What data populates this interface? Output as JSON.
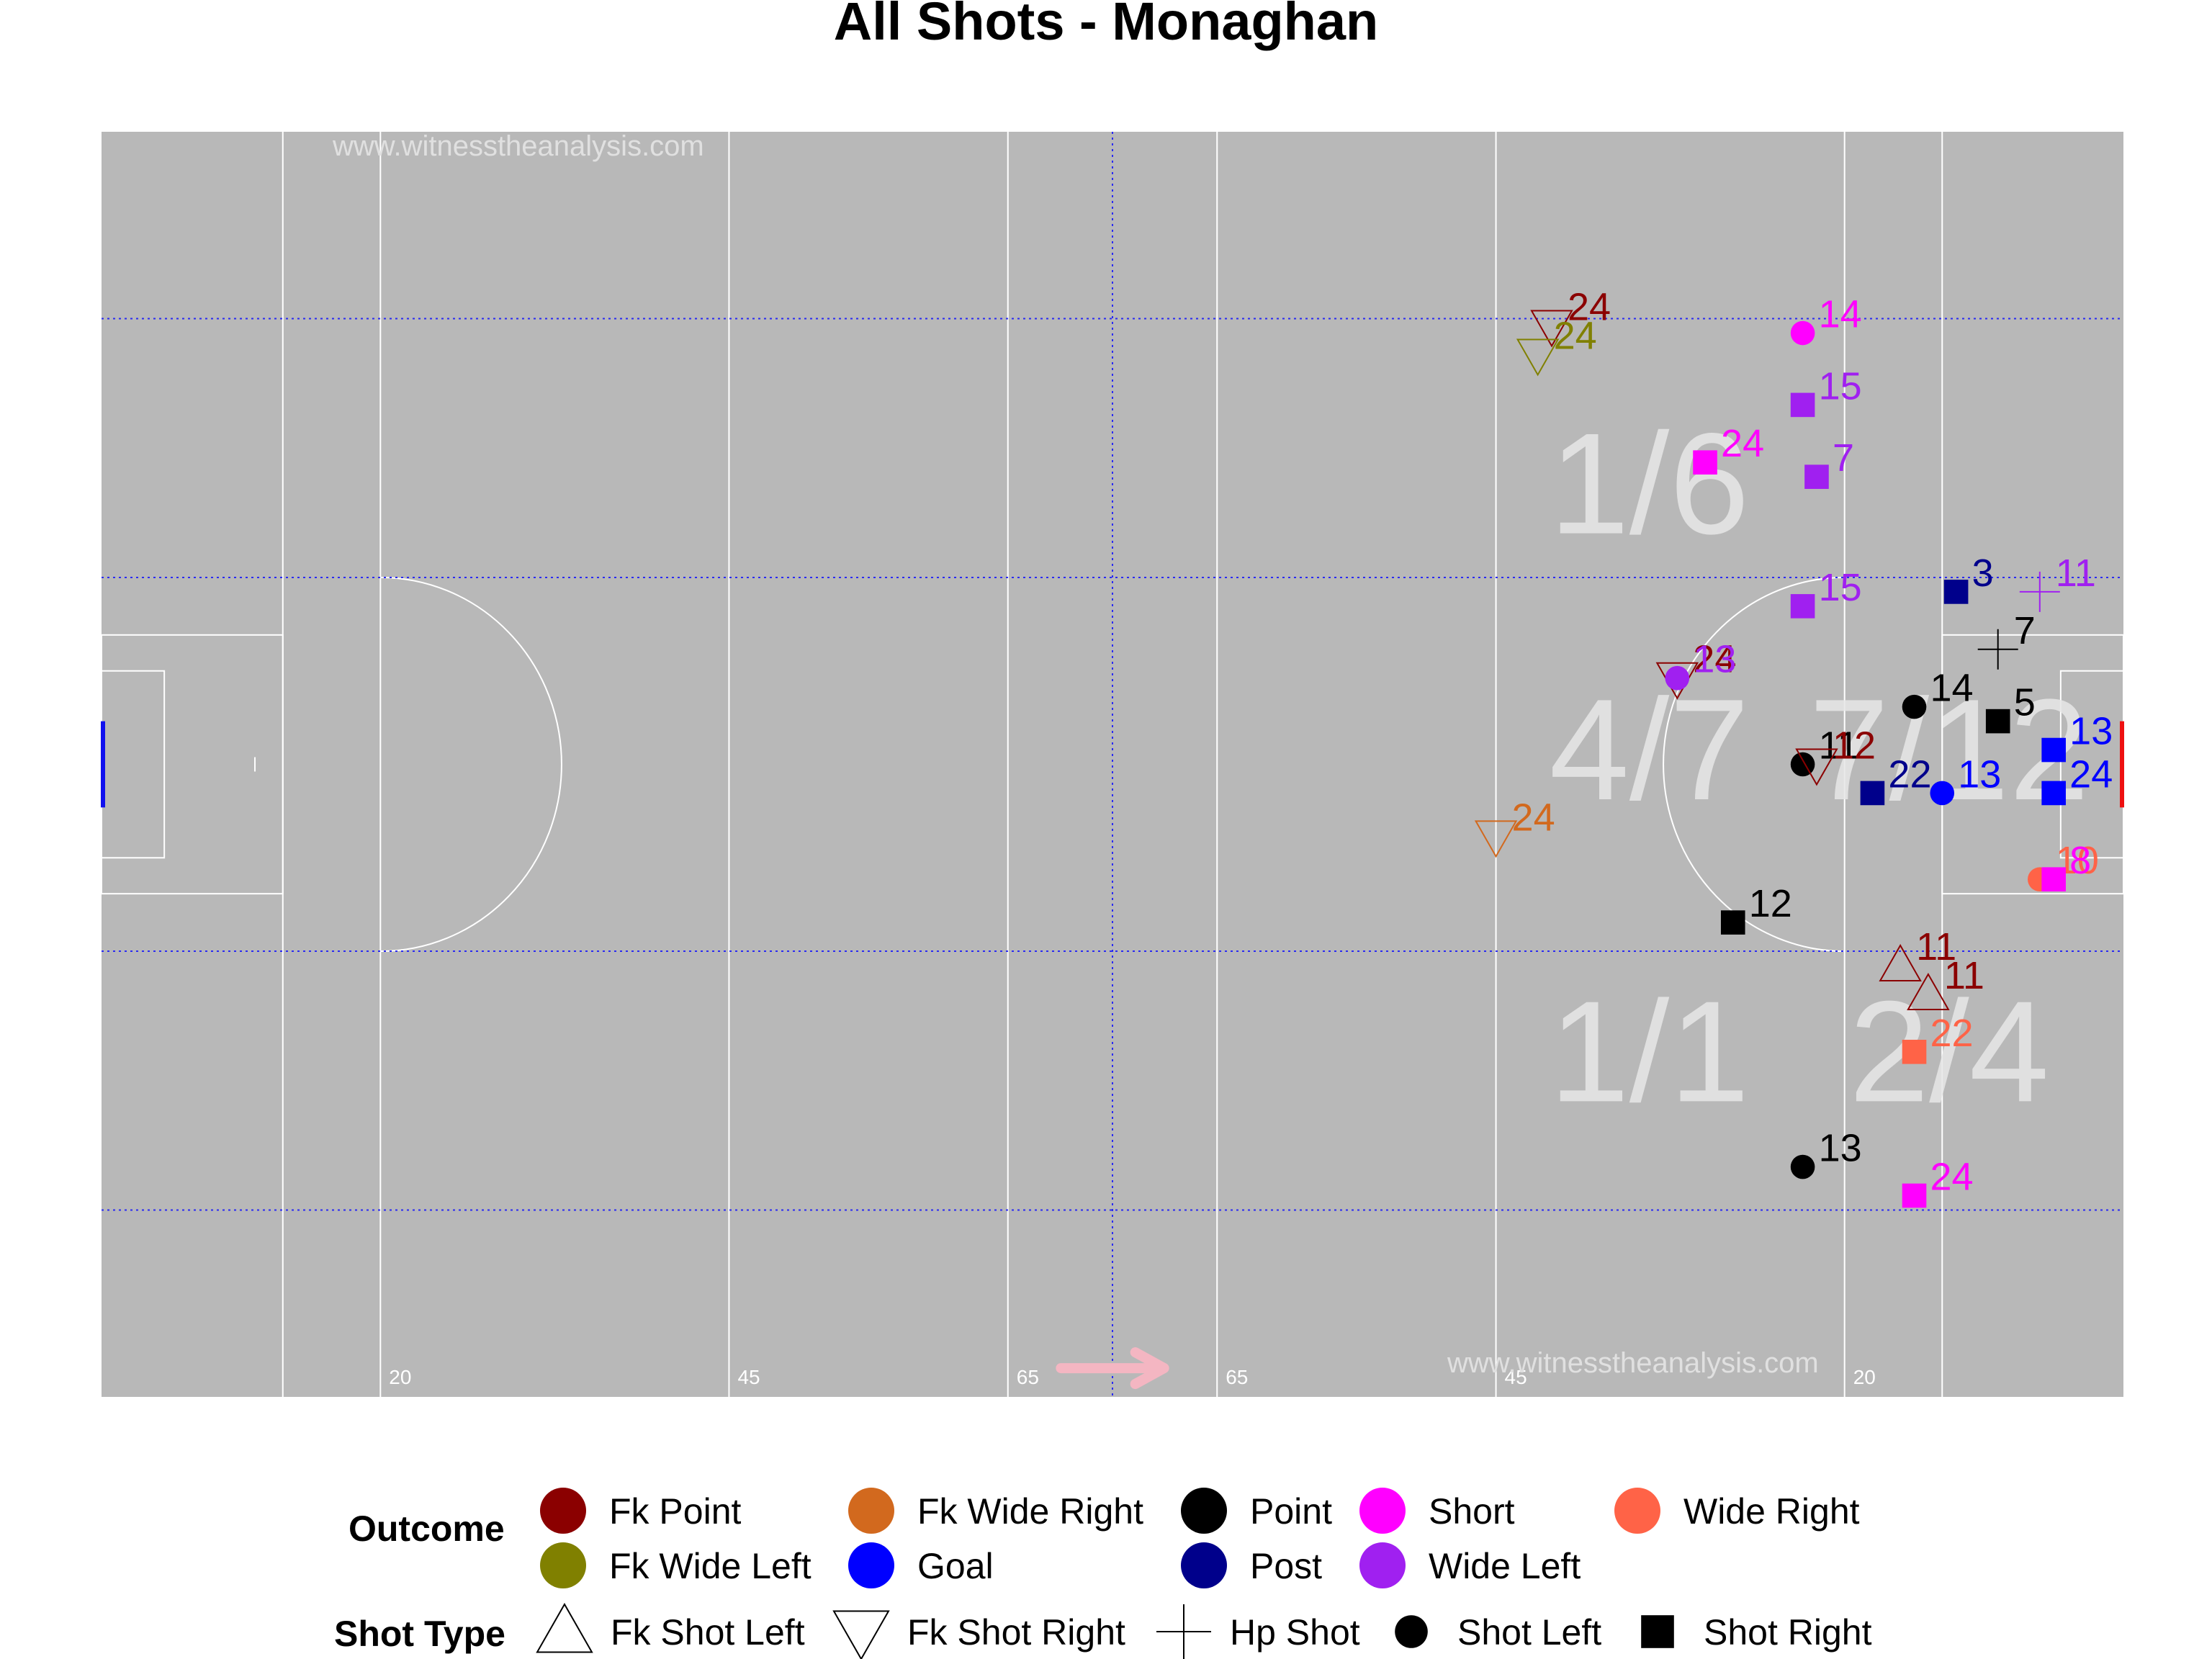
{
  "title": "All Shots - Monaghan",
  "watermark_top": "www.witnesstheanalysis.com",
  "watermark_bottom": "www.witnesstheanalysis.com",
  "colors": {
    "pitch": "#b8b8b8",
    "pitch_lines": "#ffffff",
    "grid": "#2a2af2",
    "zone_text": "#e6e6e6",
    "arrow": "#f4b6c2",
    "left_goal": "#1010ee",
    "right_goal": "#ee1010"
  },
  "pitch_markings": [
    {
      "label": "20",
      "x": 20
    },
    {
      "label": "45",
      "x": 45
    },
    {
      "label": "65",
      "x": 65
    },
    {
      "label": "65",
      "x": 80
    },
    {
      "label": "45",
      "x": 100
    },
    {
      "label": "20",
      "x": 125
    }
  ],
  "zones": [
    {
      "label": "1/6",
      "x": 111,
      "y": 63.5
    },
    {
      "label": "4/7",
      "x": 111,
      "y": 45
    },
    {
      "label": "7/12",
      "x": 132.5,
      "y": 45
    },
    {
      "label": "1/1",
      "x": 111,
      "y": 24
    },
    {
      "label": "2/4",
      "x": 132.5,
      "y": 24
    }
  ],
  "legend": {
    "outcome_title": "Outcome",
    "outcomes": [
      {
        "key": "fk_point",
        "label": "Fk Point",
        "color": "#8b0000"
      },
      {
        "key": "fk_wide_left",
        "label": "Fk Wide Left",
        "color": "#808000"
      },
      {
        "key": "fk_wide_right",
        "label": "Fk Wide Right",
        "color": "#d2691e"
      },
      {
        "key": "goal",
        "label": "Goal",
        "color": "#0000ff"
      },
      {
        "key": "point",
        "label": "Point",
        "color": "#000000"
      },
      {
        "key": "post",
        "label": "Post",
        "color": "#00008b"
      },
      {
        "key": "short",
        "label": "Short",
        "color": "#ff00ff"
      },
      {
        "key": "wide_left",
        "label": "Wide Left",
        "color": "#a020f0"
      },
      {
        "key": "wide_right",
        "label": "Wide Right",
        "color": "#ff6347"
      }
    ],
    "shot_type_title": "Shot Type",
    "shot_types": [
      {
        "key": "fk_left",
        "label": "Fk Shot Left",
        "shape": "triangle-up"
      },
      {
        "key": "fk_right",
        "label": "Fk Shot Right",
        "shape": "triangle-down"
      },
      {
        "key": "hp",
        "label": "Hp Shot",
        "shape": "plus"
      },
      {
        "key": "shot_left",
        "label": "Shot Left",
        "shape": "circle"
      },
      {
        "key": "shot_right",
        "label": "Shot Right",
        "shape": "square"
      }
    ]
  },
  "chart_data": {
    "type": "scatter",
    "title": "All Shots - Monaghan",
    "xlim": [
      0,
      145
    ],
    "ylim": [
      0,
      88
    ],
    "grid_x": [
      72.5
    ],
    "grid_y": [
      13,
      31,
      57,
      75
    ],
    "grid": true,
    "legend_position": "bottom",
    "points": [
      {
        "x": 104,
        "y": 74.5,
        "label": "24",
        "outcome": "fk_point",
        "shot": "fk_right"
      },
      {
        "x": 103,
        "y": 72.5,
        "label": "24",
        "outcome": "fk_wide_left",
        "shot": "fk_right"
      },
      {
        "x": 122,
        "y": 74,
        "label": "14",
        "outcome": "short",
        "shot": "shot_left"
      },
      {
        "x": 122,
        "y": 69,
        "label": "15",
        "outcome": "wide_left",
        "shot": "shot_right"
      },
      {
        "x": 115,
        "y": 65,
        "label": "24",
        "outcome": "short",
        "shot": "shot_right"
      },
      {
        "x": 123,
        "y": 64,
        "label": "7",
        "outcome": "wide_left",
        "shot": "shot_right"
      },
      {
        "x": 122,
        "y": 55,
        "label": "15",
        "outcome": "wide_left",
        "shot": "shot_right"
      },
      {
        "x": 133,
        "y": 56,
        "label": "3",
        "outcome": "post",
        "shot": "shot_right"
      },
      {
        "x": 139,
        "y": 56,
        "label": "11",
        "outcome": "wide_left",
        "shot": "hp"
      },
      {
        "x": 136,
        "y": 52,
        "label": "7",
        "outcome": "point",
        "shot": "hp"
      },
      {
        "x": 113,
        "y": 50,
        "label": "24",
        "outcome": "fk_point",
        "shot": "fk_right"
      },
      {
        "x": 113,
        "y": 50,
        "label": "13",
        "outcome": "wide_left",
        "shot": "shot_left"
      },
      {
        "x": 130,
        "y": 48,
        "label": "14",
        "outcome": "point",
        "shot": "shot_left"
      },
      {
        "x": 136,
        "y": 47,
        "label": "5",
        "outcome": "point",
        "shot": "shot_right"
      },
      {
        "x": 140,
        "y": 45,
        "label": "13",
        "outcome": "goal",
        "shot": "shot_right"
      },
      {
        "x": 122,
        "y": 44,
        "label": "11",
        "outcome": "point",
        "shot": "shot_left"
      },
      {
        "x": 123,
        "y": 44,
        "label": "12",
        "outcome": "fk_point",
        "shot": "fk_right"
      },
      {
        "x": 127,
        "y": 42,
        "label": "22",
        "outcome": "post",
        "shot": "shot_right"
      },
      {
        "x": 132,
        "y": 42,
        "label": "13",
        "outcome": "goal",
        "shot": "shot_left"
      },
      {
        "x": 140,
        "y": 42,
        "label": "24",
        "outcome": "goal",
        "shot": "shot_right"
      },
      {
        "x": 100,
        "y": 39,
        "label": "24",
        "outcome": "fk_wide_right",
        "shot": "fk_right"
      },
      {
        "x": 139,
        "y": 36,
        "label": "10",
        "outcome": "wide_right",
        "shot": "shot_left"
      },
      {
        "x": 140,
        "y": 36,
        "label": "8",
        "outcome": "short",
        "shot": "shot_right"
      },
      {
        "x": 117,
        "y": 33,
        "label": "12",
        "outcome": "point",
        "shot": "shot_right"
      },
      {
        "x": 129,
        "y": 30,
        "label": "11",
        "outcome": "fk_point",
        "shot": "fk_left"
      },
      {
        "x": 131,
        "y": 28,
        "label": "11",
        "outcome": "fk_point",
        "shot": "fk_left"
      },
      {
        "x": 130,
        "y": 24,
        "label": "22",
        "outcome": "wide_right",
        "shot": "shot_right"
      },
      {
        "x": 122,
        "y": 16,
        "label": "13",
        "outcome": "point",
        "shot": "shot_left"
      },
      {
        "x": 130,
        "y": 14,
        "label": "24",
        "outcome": "short",
        "shot": "shot_right"
      }
    ]
  }
}
